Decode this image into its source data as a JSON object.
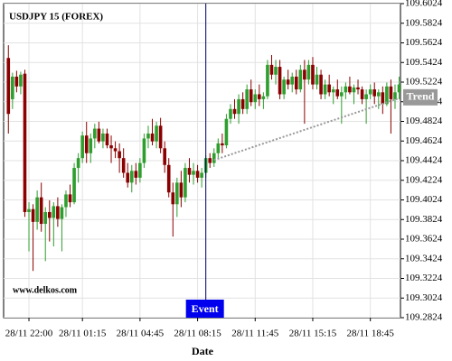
{
  "chart_data": {
    "type": "candlestick",
    "title": "USDJPY 15 (FOREX)",
    "watermark": "www.delkos.com",
    "x_label": "Date",
    "categories": [
      null,
      null,
      null,
      null,
      null,
      "28/11 22:00",
      null,
      null,
      null,
      null,
      null,
      null,
      null,
      null,
      null,
      null,
      null,
      null,
      "28/11 01:15",
      null,
      null,
      null,
      null,
      null,
      null,
      null,
      null,
      null,
      null,
      null,
      null,
      null,
      "28/11 04:45",
      null,
      null,
      null,
      null,
      null,
      null,
      null,
      null,
      null,
      null,
      null,
      null,
      null,
      "28/11 08:15",
      null,
      null,
      null,
      null,
      null,
      null,
      null,
      null,
      null,
      null,
      null,
      null,
      null,
      "28/11 11:45",
      null,
      null,
      null,
      null,
      null,
      null,
      null,
      null,
      null,
      null,
      null,
      null,
      null,
      "28/11 15:15",
      null,
      null,
      null,
      null,
      null,
      null,
      null,
      null,
      null,
      null,
      null,
      null,
      null,
      "28/11 18:45",
      null,
      null,
      null,
      null,
      null,
      null,
      null
    ],
    "open": [
      109.547,
      109.505,
      109.528,
      109.518,
      109.531,
      109.39,
      109.393,
      109.38,
      109.405,
      109.378,
      109.39,
      109.384,
      109.396,
      109.383,
      109.395,
      109.408,
      109.4,
      109.435,
      109.445,
      109.468,
      109.45,
      109.465,
      109.475,
      109.462,
      109.47,
      109.458,
      109.455,
      109.452,
      109.445,
      109.43,
      109.42,
      109.432,
      109.425,
      109.44,
      109.465,
      109.47,
      109.462,
      109.478,
      109.455,
      109.438,
      109.41,
      109.398,
      109.42,
      109.405,
      109.435,
      109.428,
      109.432,
      109.425,
      109.43,
      109.445,
      109.44,
      109.45,
      109.46,
      109.458,
      109.485,
      109.495,
      109.49,
      109.505,
      109.495,
      109.515,
      109.502,
      109.51,
      109.505,
      109.508,
      109.54,
      109.53,
      109.538,
      109.51,
      109.525,
      109.52,
      109.528,
      109.515,
      109.535,
      109.525,
      109.54,
      109.52,
      109.53,
      109.51,
      109.52,
      109.512,
      109.515,
      109.508,
      109.512,
      109.518,
      109.512,
      109.517,
      109.515,
      109.505,
      109.51,
      109.515,
      109.508,
      109.512,
      109.5,
      109.518,
      109.505,
      109.512
    ],
    "high": [
      109.56,
      109.532,
      109.534,
      109.533,
      109.535,
      109.4,
      109.398,
      109.412,
      109.42,
      109.395,
      109.402,
      109.4,
      109.405,
      109.398,
      109.412,
      109.418,
      109.44,
      109.45,
      109.472,
      109.482,
      109.47,
      109.48,
      109.482,
      109.475,
      109.475,
      109.468,
      109.462,
      109.46,
      109.455,
      109.44,
      109.438,
      109.44,
      109.445,
      109.47,
      109.478,
      109.485,
      109.482,
      109.486,
      109.462,
      109.445,
      109.42,
      109.425,
      109.432,
      109.44,
      109.445,
      109.44,
      109.438,
      109.435,
      109.448,
      109.45,
      109.455,
      109.465,
      109.47,
      109.49,
      109.5,
      109.505,
      109.51,
      109.512,
      109.52,
      109.525,
      109.515,
      109.52,
      109.512,
      109.545,
      109.55,
      109.545,
      109.545,
      109.528,
      109.535,
      109.532,
      109.535,
      109.54,
      109.545,
      109.545,
      109.548,
      109.538,
      109.535,
      109.525,
      109.53,
      109.518,
      109.525,
      109.518,
      109.522,
      109.528,
      109.52,
      109.525,
      109.518,
      109.515,
      109.52,
      109.522,
      109.515,
      109.518,
      109.522,
      109.525,
      109.52,
      109.528
    ],
    "low": [
      109.47,
      109.495,
      109.512,
      109.51,
      109.385,
      109.35,
      109.33,
      109.372,
      109.37,
      109.34,
      109.36,
      109.355,
      109.375,
      109.35,
      109.385,
      109.395,
      109.398,
      109.42,
      109.44,
      109.44,
      109.44,
      109.455,
      109.46,
      109.455,
      109.455,
      109.44,
      109.445,
      109.43,
      109.425,
      109.415,
      109.41,
      109.418,
      109.42,
      109.435,
      109.455,
      109.458,
      109.455,
      109.45,
      109.43,
      109.405,
      109.365,
      109.385,
      109.395,
      109.4,
      109.42,
      109.418,
      109.42,
      109.415,
      109.425,
      109.435,
      109.436,
      109.445,
      109.45,
      109.455,
      109.48,
      109.485,
      109.48,
      109.49,
      109.49,
      109.498,
      109.495,
      109.498,
      109.495,
      109.505,
      109.525,
      109.52,
      109.505,
      109.505,
      109.515,
      109.512,
      109.51,
      109.512,
      109.48,
      109.52,
      109.515,
      109.515,
      109.505,
      109.505,
      109.508,
      109.5,
      109.505,
      109.48,
      109.505,
      109.51,
      109.5,
      109.51,
      109.5,
      109.48,
      109.505,
      109.5,
      109.495,
      109.49,
      109.498,
      109.47,
      109.495,
      109.505
    ],
    "close": [
      109.49,
      109.528,
      109.518,
      109.53,
      109.39,
      109.393,
      109.38,
      109.405,
      109.378,
      109.39,
      109.384,
      109.396,
      109.383,
      109.395,
      109.408,
      109.4,
      109.435,
      109.445,
      109.468,
      109.45,
      109.465,
      109.475,
      109.462,
      109.47,
      109.458,
      109.455,
      109.452,
      109.445,
      109.43,
      109.42,
      109.432,
      109.425,
      109.44,
      109.465,
      109.47,
      109.462,
      109.478,
      109.455,
      109.438,
      109.41,
      109.398,
      109.42,
      109.405,
      109.435,
      109.428,
      109.432,
      109.425,
      109.43,
      109.445,
      109.44,
      109.45,
      109.46,
      109.458,
      109.485,
      109.495,
      109.49,
      109.505,
      109.495,
      109.515,
      109.502,
      109.51,
      109.505,
      109.508,
      109.54,
      109.53,
      109.538,
      109.51,
      109.525,
      109.52,
      109.528,
      109.515,
      109.535,
      109.525,
      109.54,
      109.52,
      109.53,
      109.51,
      109.52,
      109.512,
      109.515,
      109.508,
      109.512,
      109.518,
      109.512,
      109.517,
      109.515,
      109.505,
      109.51,
      109.515,
      109.508,
      109.512,
      109.5,
      109.518,
      109.505,
      109.512,
      109.52
    ],
    "up_color": "#2e9e2e",
    "down_color": "#8b0000",
    "ylim": [
      109.2824,
      109.6024
    ],
    "yticks": [
      109.2824,
      109.3024,
      109.3224,
      109.3424,
      109.3624,
      109.3824,
      109.4024,
      109.4224,
      109.4424,
      109.4624,
      109.4824,
      109.5024,
      109.5224,
      109.5424,
      109.5624,
      109.5824,
      109.6024
    ],
    "grid": true,
    "event": {
      "text": "Event",
      "category_index": 48,
      "color": "#0000ee"
    },
    "trend": {
      "text": "Trend",
      "start": [
        50,
        109.443
      ],
      "end": [
        95,
        109.506
      ],
      "color": "#999999"
    }
  }
}
